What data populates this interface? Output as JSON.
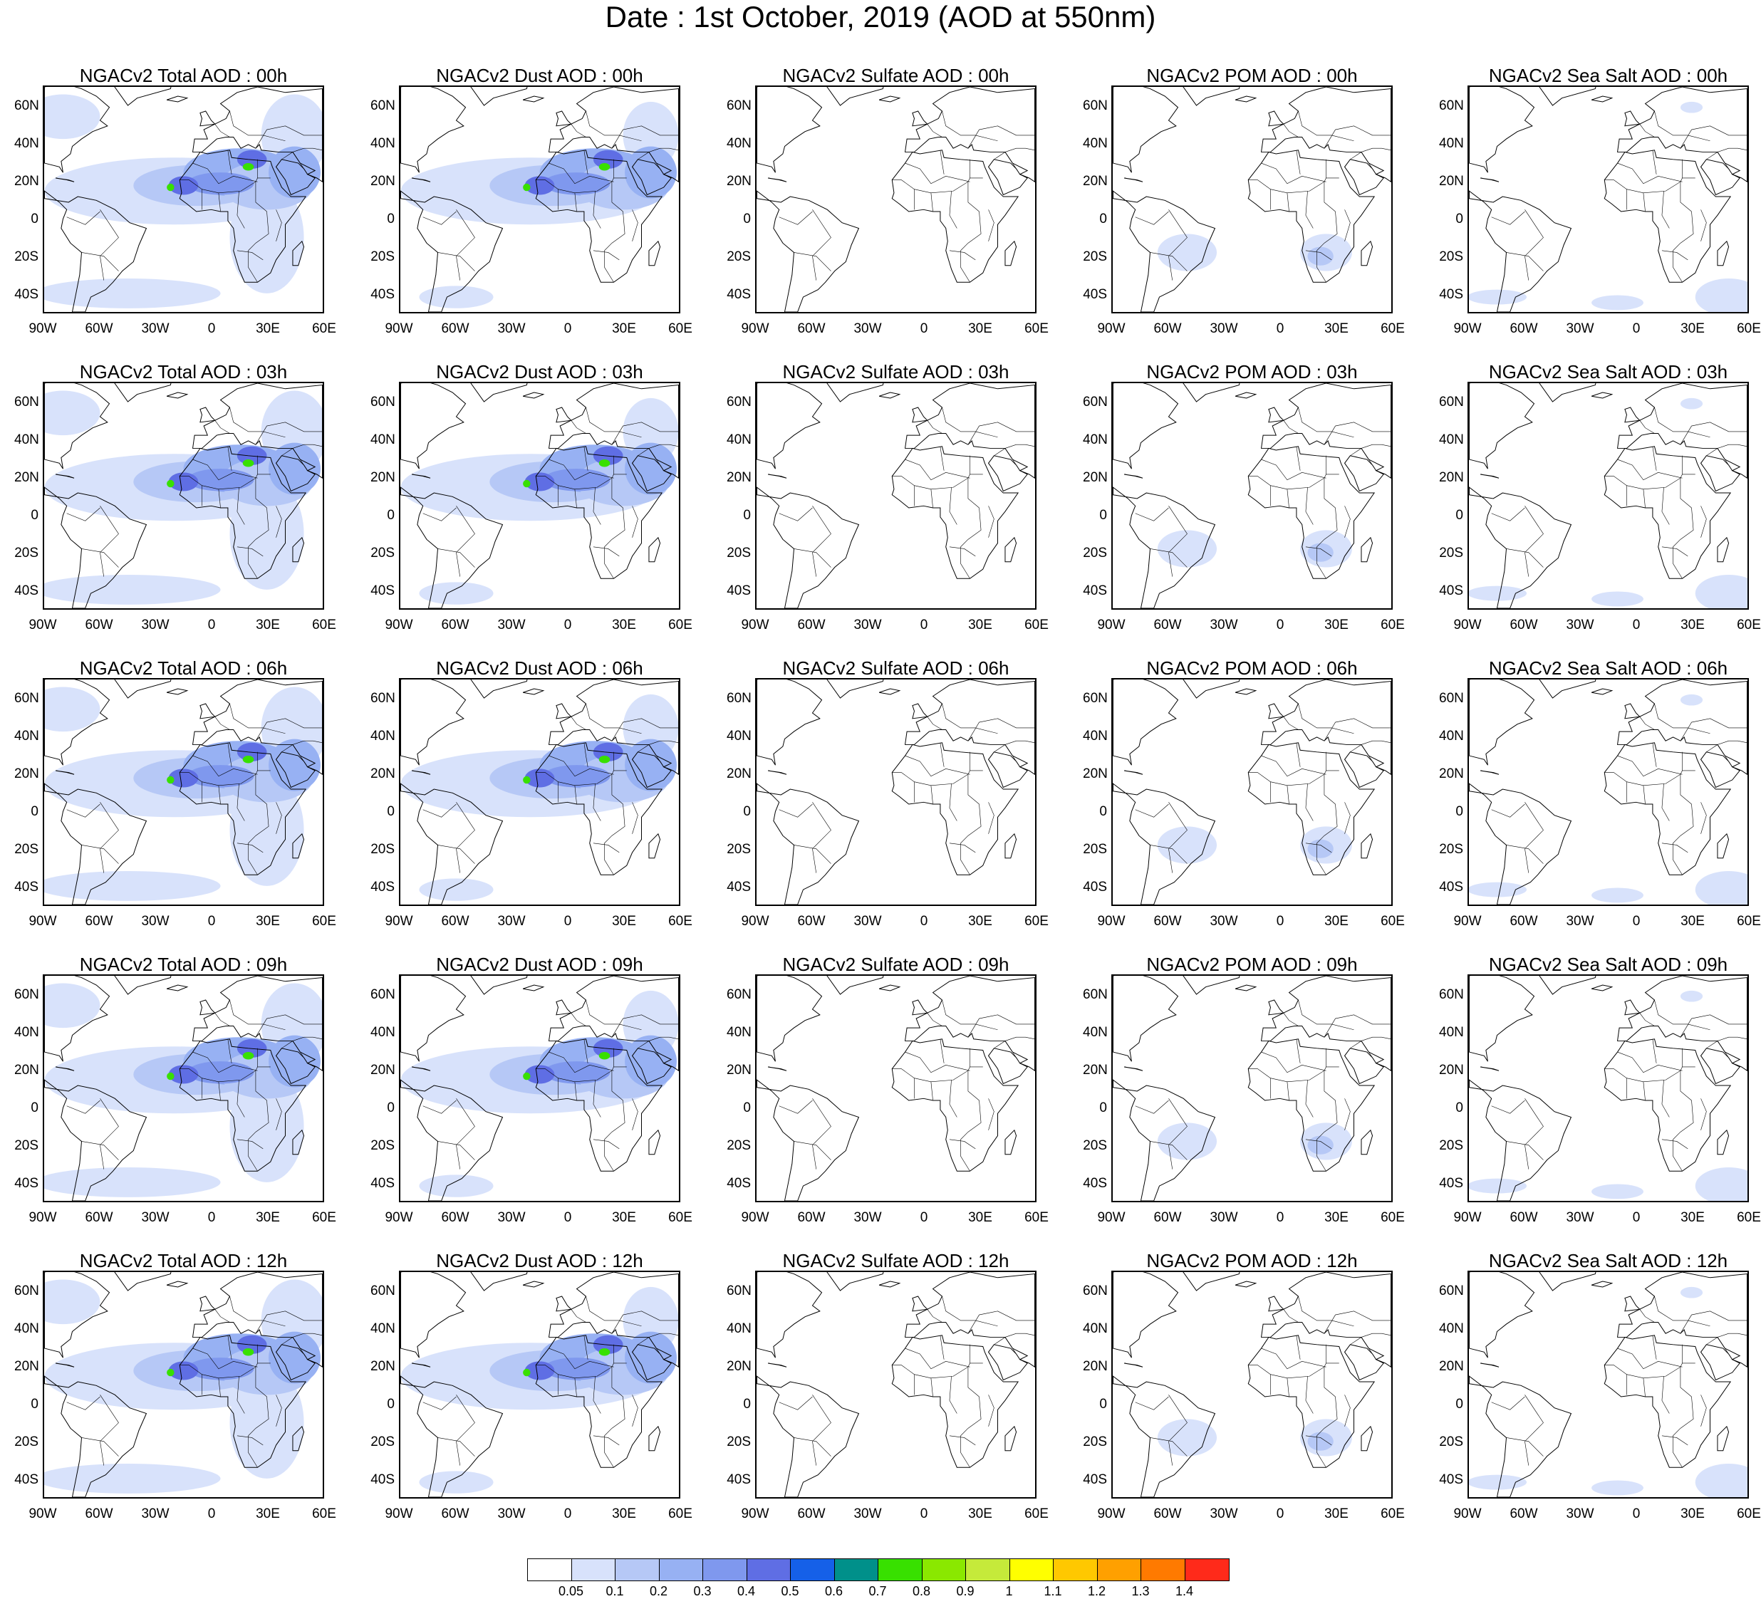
{
  "title": "Date : 1st October, 2019 (AOD at 550nm)",
  "columns": [
    "total",
    "dust",
    "sulfate",
    "pom",
    "seasalt"
  ],
  "rows": [
    "00h",
    "03h",
    "06h",
    "09h",
    "12h"
  ],
  "panel_titles": [
    [
      "NGACv2 Total AOD : 00h",
      "NGACv2 Dust AOD : 00h",
      "NGACv2 Sulfate AOD : 00h",
      "NGACv2 POM AOD : 00h",
      "NGACv2 Sea Salt AOD : 00h"
    ],
    [
      "NGACv2 Total AOD : 03h",
      "NGACv2 Dust AOD : 03h",
      "NGACv2 Sulfate AOD : 03h",
      "NGACv2 POM AOD : 03h",
      "NGACv2 Sea Salt AOD : 03h"
    ],
    [
      "NGACv2 Total AOD : 06h",
      "NGACv2 Dust AOD : 06h",
      "NGACv2 Sulfate AOD : 06h",
      "NGACv2 POM AOD : 06h",
      "NGACv2 Sea Salt AOD : 06h"
    ],
    [
      "NGACv2 Total AOD : 09h",
      "NGACv2 Dust AOD : 09h",
      "NGACv2 Sulfate AOD : 09h",
      "NGACv2 POM AOD : 09h",
      "NGACv2 Sea Salt  AOD : 09h"
    ],
    [
      "NGACv2 Total AOD  : 12h",
      "NGACv2 Dust AOD : 12h",
      "NGACv2 Sulfate AOD : 12h",
      "NGACv2 POM  AOD : 12h",
      "NGACv2 Sea Salt  AOD : 12h"
    ]
  ],
  "lat_labels": [
    "60N",
    "40N",
    "20N",
    "0",
    "20S",
    "40S"
  ],
  "lat_values": [
    60,
    40,
    20,
    0,
    -20,
    -40
  ],
  "lon_labels": [
    "90W",
    "60W",
    "30W",
    "0",
    "30E",
    "60E"
  ],
  "lon_values": [
    -90,
    -60,
    -30,
    0,
    30,
    60
  ],
  "map_extent": {
    "lon": [
      -90,
      60
    ],
    "lat": [
      -50,
      71
    ]
  },
  "colorbar": {
    "levels": [
      "0.05",
      "0.1",
      "0.2",
      "0.3",
      "0.4",
      "0.5",
      "0.6",
      "0.7",
      "0.8",
      "0.9",
      "1",
      "1.1",
      "1.2",
      "1.3",
      "1.4"
    ],
    "colors": [
      "#ffffff",
      "#d8e2fb",
      "#b6c8f6",
      "#97b1f3",
      "#7f98ee",
      "#5f6ee4",
      "#1560e8",
      "#00908a",
      "#38e000",
      "#8ae800",
      "#c5ea3a",
      "#ffff00",
      "#ffc800",
      "#ffa000",
      "#ff7a00",
      "#ff2a1a"
    ]
  }
}
